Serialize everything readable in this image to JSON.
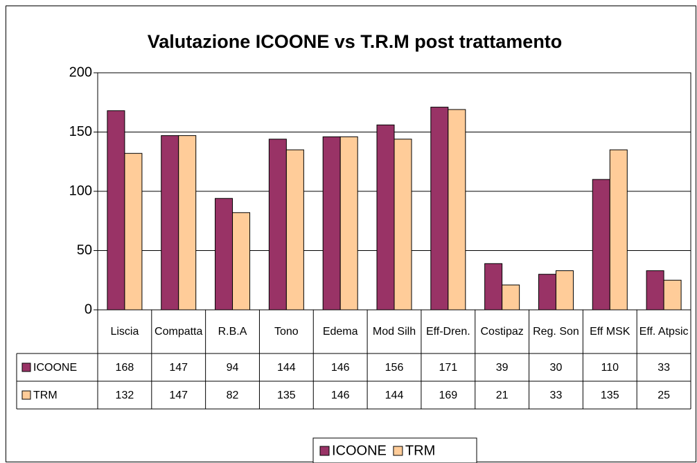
{
  "chart_data": {
    "type": "bar",
    "title": "Valutazione ICOONE vs T.R.M post trattamento",
    "categories": [
      "Liscia",
      "Compatta",
      "R.B.A",
      "Tono",
      "Edema",
      "Mod Silh",
      "Eff-Dren.",
      "Costipaz",
      "Reg. Son",
      "Eff MSK",
      "Eff. Atpsic"
    ],
    "series": [
      {
        "name": "ICOONE",
        "color": "#993366",
        "values": [
          168,
          147,
          94,
          144,
          146,
          156,
          171,
          39,
          30,
          110,
          33
        ]
      },
      {
        "name": "TRM",
        "color": "#FFCC99",
        "values": [
          132,
          147,
          82,
          135,
          146,
          144,
          169,
          21,
          33,
          135,
          25
        ]
      }
    ],
    "ylim": [
      0,
      200
    ],
    "yticks": [
      0,
      50,
      100,
      150,
      200
    ],
    "grid": true,
    "legend": "bottom"
  }
}
